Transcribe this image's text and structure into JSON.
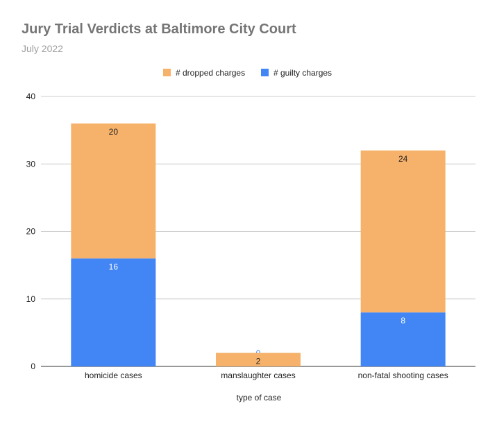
{
  "title": "Jury Trial Verdicts at Baltimore City Court",
  "subtitle": "July 2022",
  "chart_data": {
    "type": "bar",
    "stacked": true,
    "categories": [
      "homicide cases",
      "manslaughter cases",
      "non-fatal shooting cases"
    ],
    "series": [
      {
        "name": "# guilty charges",
        "values": [
          16,
          0,
          8
        ],
        "color": "#4285f4",
        "label_color": "#ffffff"
      },
      {
        "name": "# dropped charges",
        "values": [
          20,
          2,
          24
        ],
        "color": "#f6b26b",
        "label_color": "#222222"
      }
    ],
    "legend_order": [
      1,
      0
    ],
    "legend_position": "top",
    "xlabel": "type of case",
    "ylabel": "",
    "ylim": [
      0,
      40
    ],
    "yticks": [
      0,
      10,
      20,
      30,
      40
    ],
    "grid": true
  }
}
